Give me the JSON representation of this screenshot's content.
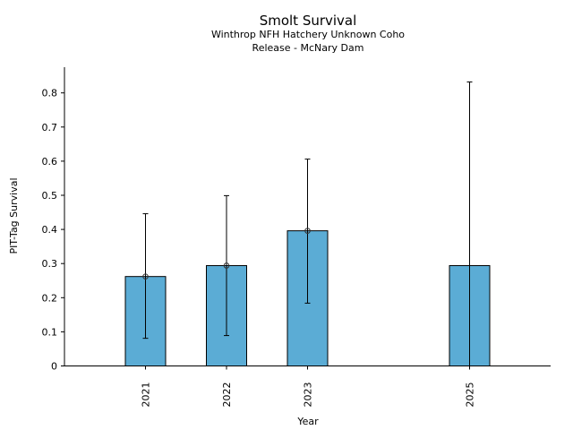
{
  "chart_data": {
    "type": "bar",
    "title": "Smolt Survival",
    "subtitle_lines": [
      "Winthrop NFH Hatchery Unknown Coho",
      "Release - McNary Dam"
    ],
    "xlabel": "Year",
    "ylabel": "PIT-Tag Survival",
    "categories": [
      "2021",
      "2022",
      "2023",
      "2025"
    ],
    "x": [
      2021,
      2022,
      2023,
      2025
    ],
    "values": [
      0.262,
      0.294,
      0.396,
      0.294
    ],
    "error_low": [
      0.081,
      0.089,
      0.184,
      0.0
    ],
    "error_high": [
      0.446,
      0.499,
      0.606,
      0.832
    ],
    "point_markers": [
      true,
      true,
      true,
      false
    ],
    "xlim": [
      2020.0,
      2026.0
    ],
    "ylim": [
      0,
      0.85
    ],
    "yticks": [
      0,
      0.1,
      0.2,
      0.3,
      0.4,
      0.5,
      0.6,
      0.7,
      0.8
    ],
    "ytick_labels": [
      "0",
      "0.1",
      "0.2",
      "0.3",
      "0.4",
      "0.5",
      "0.6",
      "0.7",
      "0.8"
    ],
    "grid": false,
    "bar_color": "#5bacd5",
    "edge_color": "#000000"
  }
}
